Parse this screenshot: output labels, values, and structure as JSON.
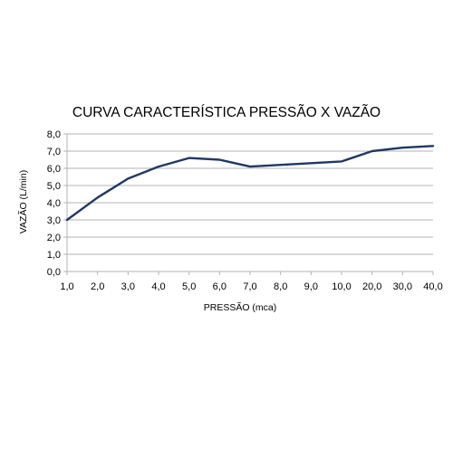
{
  "chart_data": {
    "type": "line",
    "title": "CURVA CARACTERÍSTICA PRESSÃO X VAZÃO",
    "xlabel": "PRESSÃO (mca)",
    "ylabel": "VAZÃO (L/min)",
    "categories": [
      "1,0",
      "2,0",
      "3,0",
      "4,0",
      "5,0",
      "6,0",
      "7,0",
      "8,0",
      "9,0",
      "10,0",
      "20,0",
      "30,0",
      "40,0"
    ],
    "series": [
      {
        "values": [
          3.0,
          4.3,
          5.4,
          6.1,
          6.6,
          6.5,
          6.1,
          6.2,
          6.3,
          6.4,
          7.0,
          7.2,
          7.3
        ]
      }
    ],
    "ylim": [
      0,
      8
    ],
    "ytick_step": 1,
    "ytick_labels": [
      "0,0",
      "1,0",
      "2,0",
      "3,0",
      "4,0",
      "5,0",
      "6,0",
      "7,0",
      "8,0"
    ],
    "grid": true,
    "legend": "none",
    "colors": {
      "line": "#1f3864",
      "grid": "#b3b3b3",
      "axis": "#b3b3b3"
    }
  }
}
